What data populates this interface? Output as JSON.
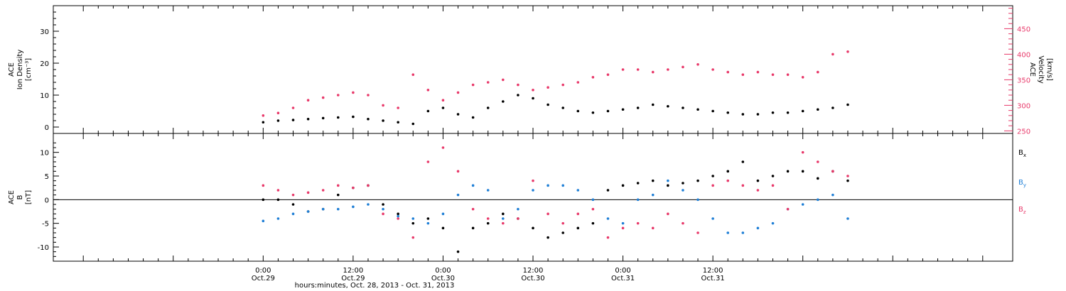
{
  "chart_data": [
    {
      "type": "scatter",
      "panel": "top",
      "ylabel_left_lines": [
        "ACE",
        "Ion Density",
        "[cm⁻³]"
      ],
      "ylabel_right_lines": [
        "ACE",
        "Velocity",
        "[km/s]"
      ],
      "left_ylim": [
        -2,
        38
      ],
      "right_ylim": [
        245,
        495
      ],
      "left_ticks": [
        0,
        10,
        20,
        30
      ],
      "right_ticks": [
        250,
        300,
        350,
        400,
        450
      ],
      "x_hours": [
        0,
        2,
        4,
        6,
        8,
        10,
        12,
        14,
        16,
        18,
        20,
        22,
        24,
        26,
        28,
        30,
        32,
        34,
        36,
        38,
        40,
        42,
        44,
        46,
        48,
        50,
        52,
        54,
        56,
        58,
        60,
        62,
        64,
        66,
        68,
        70,
        72,
        74,
        76,
        78
      ],
      "series": [
        {
          "axis": "left",
          "color": "#000000",
          "values": [
            1.5,
            2.0,
            2.2,
            2.5,
            2.8,
            3.0,
            3.2,
            2.5,
            2.0,
            1.5,
            1.0,
            5.0,
            6.0,
            4.0,
            3.0,
            6.0,
            8.0,
            10.0,
            9.0,
            7.0,
            6.0,
            5.0,
            4.5,
            5.0,
            5.5,
            6.0,
            7.0,
            6.5,
            6.0,
            5.5,
            5.0,
            4.5,
            4.0,
            4.0,
            4.5,
            4.5,
            5.0,
            5.5,
            6.0,
            7.0
          ]
        },
        {
          "axis": "right",
          "color": "#e8396a",
          "values": [
            280,
            285,
            295,
            310,
            315,
            320,
            325,
            320,
            300,
            295,
            360,
            330,
            310,
            325,
            340,
            345,
            350,
            340,
            330,
            335,
            340,
            345,
            355,
            360,
            370,
            370,
            365,
            370,
            375,
            380,
            370,
            365,
            360,
            365,
            360,
            360,
            355,
            365,
            400,
            405
          ]
        }
      ]
    },
    {
      "type": "scatter",
      "panel": "bottom",
      "ylabel_left_lines": [
        "ACE",
        "B",
        "[nT]"
      ],
      "ylim": [
        -13,
        14
      ],
      "yticks": [
        -10,
        -5,
        0,
        5,
        10
      ],
      "zero_line": true,
      "x_hours": [
        0,
        2,
        4,
        6,
        8,
        10,
        12,
        14,
        16,
        18,
        20,
        22,
        24,
        26,
        28,
        30,
        32,
        34,
        36,
        38,
        40,
        42,
        44,
        46,
        48,
        50,
        52,
        54,
        56,
        58,
        60,
        62,
        64,
        66,
        68,
        70,
        72,
        74,
        76,
        78
      ],
      "series": [
        {
          "name": "B",
          "sub": "x",
          "color": "#000000",
          "values": [
            0.0,
            0.0,
            -1.0,
            -2.5,
            -2.0,
            1.0,
            2.5,
            3.0,
            -1.0,
            -3.0,
            -5.0,
            -4.0,
            -6.0,
            -11.0,
            -6.0,
            -5.0,
            -3.0,
            -4.0,
            -6.0,
            -8.0,
            -7.0,
            -6.0,
            -5.0,
            2.0,
            3.0,
            3.5,
            4.0,
            3.0,
            3.5,
            4.0,
            5.0,
            6.0,
            8.0,
            4.0,
            5.0,
            6.0,
            6.0,
            4.5,
            6.0,
            4.0
          ]
        },
        {
          "name": "B",
          "sub": "y",
          "color": "#1f7fd6",
          "values": [
            -4.5,
            -4.0,
            -3.0,
            -2.5,
            -2.0,
            -2.0,
            -1.5,
            -1.0,
            -2.0,
            -3.5,
            -4.0,
            -5.0,
            -3.0,
            1.0,
            3.0,
            2.0,
            -4.0,
            -2.0,
            2.0,
            3.0,
            3.0,
            2.0,
            0.0,
            -4.0,
            -5.0,
            0.0,
            1.0,
            4.0,
            2.0,
            0.0,
            -4.0,
            -7.0,
            -7.0,
            -6.0,
            -5.0,
            -2.0,
            -1.0,
            0.0,
            1.0,
            -4.0
          ]
        },
        {
          "name": "B",
          "sub": "z",
          "color": "#e8396a",
          "values": [
            3.0,
            2.0,
            1.0,
            1.5,
            2.0,
            3.0,
            2.5,
            3.0,
            -3.0,
            -4.0,
            -8.0,
            8.0,
            11.0,
            6.0,
            -2.0,
            -4.0,
            -5.0,
            -4.0,
            4.0,
            -3.0,
            -5.0,
            -3.0,
            -2.0,
            -8.0,
            -6.0,
            -5.0,
            -6.0,
            -3.0,
            -5.0,
            -7.0,
            3.0,
            4.0,
            3.0,
            2.0,
            3.0,
            -2.0,
            10.0,
            8.0,
            6.0,
            5.0
          ]
        }
      ]
    }
  ],
  "x_axis": {
    "xlim_hours": [
      -28,
      100
    ],
    "major_hours": [
      0,
      24,
      48,
      72
    ],
    "tick_time_labels": [
      "0:00",
      "12:00",
      "0:00",
      "12:00",
      "0:00",
      "12:00"
    ],
    "tick_date_labels": [
      "Oct.29",
      "Oct.29",
      "Oct.30",
      "Oct.30",
      "Oct.31",
      "Oct.31"
    ],
    "tick_hours": [
      0,
      12,
      24,
      36,
      48,
      60
    ],
    "title": "hours:minutes, Oct. 28, 2013 - Oct. 31, 2013"
  },
  "colors": {
    "density": "#000000",
    "velocity": "#e8396a",
    "bx": "#000000",
    "by": "#1f7fd6",
    "bz": "#e8396a",
    "frame": "#000000"
  }
}
